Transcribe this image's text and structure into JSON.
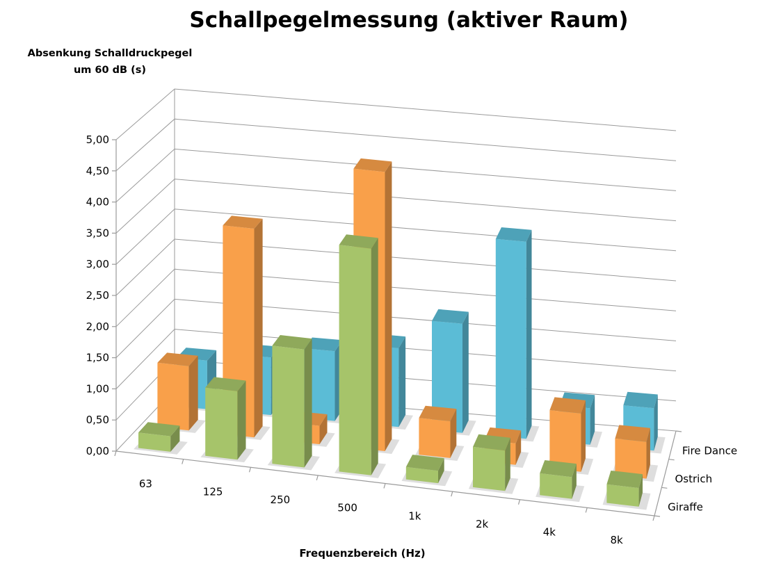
{
  "chart_data": {
    "type": "bar",
    "subtype": "3d-column",
    "title": "Schallpegelmessung (aktiver Raum)",
    "ylabel_lines": [
      "Absenkung Schalldruckpegel",
      "um 60 dB (s)"
    ],
    "xlabel": "Frequenzbereich (Hz)",
    "categories": [
      "63",
      "125",
      "250",
      "500",
      "1k",
      "2k",
      "4k",
      "8k"
    ],
    "y_ticks": [
      "0,00",
      "0,50",
      "1,00",
      "1,50",
      "2,00",
      "2,50",
      "3,00",
      "3,50",
      "4,00",
      "4,50",
      "5,00"
    ],
    "ylim": [
      0,
      5
    ],
    "grid": true,
    "series": [
      {
        "name": "Giraffe",
        "color": "#a6c46a",
        "values": [
          0.25,
          1.1,
          1.9,
          3.65,
          0.2,
          0.65,
          0.35,
          0.3
        ]
      },
      {
        "name": "Ostrich",
        "color": "#f9a04a",
        "values": [
          1.05,
          3.4,
          0.3,
          4.55,
          0.6,
          0.35,
          0.95,
          0.6
        ]
      },
      {
        "name": "Fire Dance",
        "color": "#5bbcd6",
        "values": [
          0.8,
          0.95,
          1.15,
          1.3,
          1.8,
          3.25,
          0.6,
          0.7
        ]
      }
    ]
  }
}
